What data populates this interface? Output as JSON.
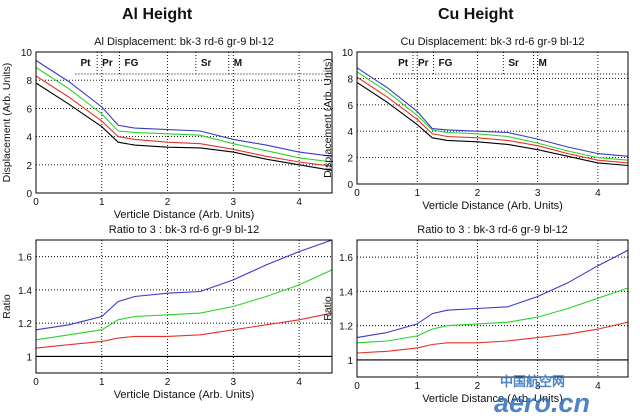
{
  "headings": {
    "left": "Al Height",
    "right": "Cu Height"
  },
  "watermark": {
    "cn": "中国航空网",
    "latin": "aero.cn",
    "color": "#2f6fba"
  },
  "colors": {
    "bk": "#000000",
    "rd": "#e8312a",
    "gr": "#2ad42a",
    "bl": "#3a3ac8"
  },
  "chart_data": [
    {
      "type": "line",
      "title": "Al Displacement: bk-3 rd-6 gr-9 bl-12",
      "xlabel": "Verticle Distance (Arb. Units)",
      "ylabel": "Displacement (Arb. Units)",
      "xlim": [
        0,
        4.5
      ],
      "ylim": [
        0,
        10
      ],
      "xticks": [
        0,
        1,
        2,
        3,
        4
      ],
      "yticks": [
        0,
        2,
        4,
        6,
        8,
        10
      ],
      "grid": true,
      "regions": [
        {
          "label": "Pt",
          "x0": 0.6,
          "x1": 0.93
        },
        {
          "label": "Pr",
          "x0": 0.93,
          "x1": 1.27
        },
        {
          "label": "FG",
          "x0": 1.27,
          "x1": 2.43
        },
        {
          "label": "Sr",
          "x0": 2.43,
          "x1": 2.93
        },
        {
          "label": "M",
          "x0": 2.93,
          "x1": 4.5
        }
      ],
      "x": [
        0,
        0.5,
        1,
        1.25,
        1.5,
        2,
        2.5,
        3,
        3.5,
        4,
        4.5
      ],
      "series": [
        {
          "name": "bk",
          "values": [
            7.8,
            6.3,
            4.7,
            3.6,
            3.4,
            3.25,
            3.2,
            2.9,
            2.4,
            2.0,
            1.6
          ]
        },
        {
          "name": "rd",
          "values": [
            8.3,
            6.8,
            5.1,
            4.0,
            3.8,
            3.6,
            3.5,
            3.1,
            2.6,
            2.2,
            1.9
          ]
        },
        {
          "name": "gr",
          "values": [
            8.9,
            7.4,
            5.6,
            4.4,
            4.3,
            4.2,
            4.1,
            3.5,
            3.0,
            2.5,
            2.2
          ]
        },
        {
          "name": "bl",
          "values": [
            9.4,
            7.9,
            6.1,
            4.8,
            4.6,
            4.5,
            4.4,
            3.8,
            3.4,
            2.9,
            2.6
          ]
        }
      ]
    },
    {
      "type": "line",
      "title": "Cu Displacement: bk-3 rd-6 gr-9 bl-12",
      "xlabel": "Verticle Distance (Arb. Units)",
      "ylabel": "Displacement (Arb. Units)",
      "xlim": [
        0,
        4.5
      ],
      "ylim": [
        0,
        10
      ],
      "xticks": [
        0,
        1,
        2,
        3,
        4
      ],
      "yticks": [
        0,
        2,
        4,
        6,
        8,
        10
      ],
      "grid": true,
      "regions": [
        {
          "label": "Pt",
          "x0": 0.6,
          "x1": 0.93
        },
        {
          "label": "Pr",
          "x0": 0.93,
          "x1": 1.27
        },
        {
          "label": "FG",
          "x0": 1.27,
          "x1": 2.43
        },
        {
          "label": "Sr",
          "x0": 2.43,
          "x1": 2.93
        },
        {
          "label": "M",
          "x0": 2.93,
          "x1": 4.5
        }
      ],
      "x": [
        0,
        0.5,
        1,
        1.25,
        1.5,
        2,
        2.5,
        3,
        3.5,
        4,
        4.5
      ],
      "series": [
        {
          "name": "bk",
          "values": [
            7.7,
            6.2,
            4.5,
            3.5,
            3.3,
            3.2,
            3.0,
            2.6,
            2.1,
            1.6,
            1.4
          ]
        },
        {
          "name": "rd",
          "values": [
            8.1,
            6.6,
            4.9,
            3.8,
            3.6,
            3.5,
            3.3,
            2.9,
            2.3,
            1.8,
            1.6
          ]
        },
        {
          "name": "gr",
          "values": [
            8.5,
            7.0,
            5.2,
            4.1,
            3.9,
            3.8,
            3.6,
            3.1,
            2.5,
            2.0,
            1.8
          ]
        },
        {
          "name": "bl",
          "values": [
            8.8,
            7.3,
            5.5,
            4.2,
            4.1,
            4.0,
            3.9,
            3.4,
            2.8,
            2.3,
            2.1
          ]
        }
      ]
    },
    {
      "type": "line",
      "title": "Ratio to 3 : bk-3 rd-6 gr-9 bl-12",
      "xlabel": "Verticle Distance (Arb. Units)",
      "ylabel": "Ratio",
      "xlim": [
        0,
        4.5
      ],
      "ylim": [
        0.9,
        1.7
      ],
      "xticks": [
        0,
        1,
        2,
        3,
        4
      ],
      "yticks": [
        1,
        1.2,
        1.4,
        1.6
      ],
      "grid": true,
      "x": [
        0,
        0.5,
        1,
        1.25,
        1.5,
        2,
        2.5,
        3,
        3.5,
        4,
        4.5
      ],
      "series": [
        {
          "name": "bk",
          "values": [
            1,
            1,
            1,
            1,
            1,
            1,
            1,
            1,
            1,
            1,
            1
          ]
        },
        {
          "name": "rd",
          "values": [
            1.05,
            1.07,
            1.09,
            1.11,
            1.12,
            1.12,
            1.13,
            1.16,
            1.19,
            1.22,
            1.26
          ]
        },
        {
          "name": "gr",
          "values": [
            1.1,
            1.13,
            1.16,
            1.22,
            1.24,
            1.25,
            1.26,
            1.3,
            1.36,
            1.43,
            1.52
          ]
        },
        {
          "name": "bl",
          "values": [
            1.16,
            1.19,
            1.24,
            1.33,
            1.36,
            1.38,
            1.39,
            1.46,
            1.55,
            1.63,
            1.7
          ]
        }
      ]
    },
    {
      "type": "line",
      "title": "Ratio to 3 : bk-3 rd-6 gr-9 bl-12",
      "xlabel": "Verticle Distance (Arb. Units)",
      "ylabel": "Ratio",
      "xlim": [
        0,
        4.5
      ],
      "ylim": [
        0.9,
        1.7
      ],
      "xticks": [
        0,
        1,
        2,
        3,
        4
      ],
      "yticks": [
        1,
        1.2,
        1.4,
        1.6
      ],
      "grid": true,
      "x": [
        0,
        0.5,
        1,
        1.25,
        1.5,
        2,
        2.5,
        3,
        3.5,
        4,
        4.5
      ],
      "series": [
        {
          "name": "bk",
          "values": [
            1,
            1,
            1,
            1,
            1,
            1,
            1,
            1,
            1,
            1,
            1
          ]
        },
        {
          "name": "rd",
          "values": [
            1.04,
            1.05,
            1.07,
            1.09,
            1.1,
            1.1,
            1.11,
            1.13,
            1.15,
            1.18,
            1.22
          ]
        },
        {
          "name": "gr",
          "values": [
            1.1,
            1.11,
            1.14,
            1.18,
            1.2,
            1.21,
            1.22,
            1.25,
            1.3,
            1.36,
            1.42
          ]
        },
        {
          "name": "bl",
          "values": [
            1.13,
            1.16,
            1.21,
            1.27,
            1.29,
            1.3,
            1.31,
            1.37,
            1.45,
            1.55,
            1.64
          ]
        }
      ]
    }
  ]
}
